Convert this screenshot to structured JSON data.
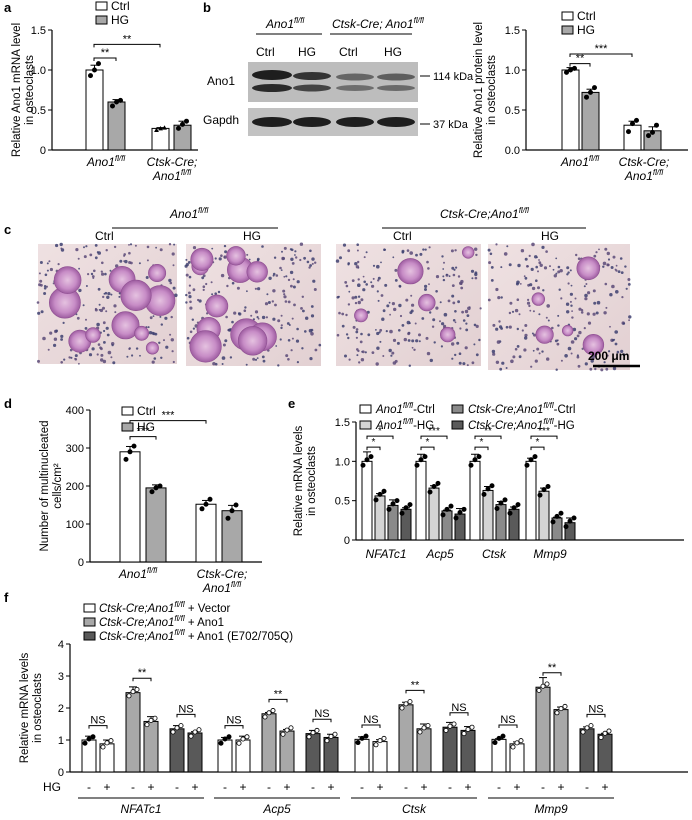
{
  "colors": {
    "ctrl": "#ffffff",
    "hg": "#a8a8a8",
    "vector": "#ffffff",
    "ano1": "#a8a8a8",
    "mut": "#595959",
    "e_white": "#ffffff",
    "e_light": "#d4d4d4",
    "e_mid": "#8a8a8a",
    "e_dark": "#5a5a5a"
  },
  "panel_letters": {
    "a": "a",
    "b": "b",
    "c": "c",
    "d": "d",
    "e": "e",
    "f": "f"
  },
  "chart_data": [
    {
      "id": "a",
      "type": "bar",
      "ylabel_line1": "Relative Ano1 mRNA level",
      "ylabel_line2": "in osteoclasts",
      "ylim": [
        0,
        1.5
      ],
      "yticks": [
        "0",
        "0.5",
        "1.0",
        "1.5"
      ],
      "groups": [
        {
          "label": "Ano1",
          "sup": "fl/fl",
          "line2": ""
        },
        {
          "label": "Ctsk-Cre;",
          "sup": "",
          "line2": "Ano1",
          "sup2": "fl/fl"
        }
      ],
      "legend": [
        "Ctrl",
        "HG"
      ],
      "series": [
        {
          "name": "Ctrl",
          "values": [
            1.0,
            0.27
          ]
        },
        {
          "name": "HG",
          "values": [
            0.6,
            0.31
          ]
        }
      ],
      "errors": [
        [
          0.06,
          0.01
        ],
        [
          0.03,
          0.05
        ]
      ],
      "points": [
        [
          [
            0.93,
            1.0,
            1.08
          ],
          [
            0.25,
            0.27,
            0.28
          ]
        ],
        [
          [
            0.55,
            0.6,
            0.62
          ],
          [
            0.27,
            0.32,
            0.36
          ]
        ]
      ],
      "sig": [
        "**",
        "**"
      ]
    },
    {
      "id": "b",
      "type": "bar",
      "ylabel_line1": "Relative Ano1 protein level",
      "ylabel_line2": "in osteoclasts",
      "ylim": [
        0,
        1.5
      ],
      "yticks": [
        "0.0",
        "0.5",
        "1.0",
        "1.5"
      ],
      "groups": [
        {
          "label": "Ano1",
          "sup": "fl/fl",
          "line2": ""
        },
        {
          "label": "Ctsk-Cre;",
          "sup": "",
          "line2": "Ano1",
          "sup2": "fl/fl"
        }
      ],
      "legend": [
        "Ctrl",
        "HG"
      ],
      "series": [
        {
          "name": "Ctrl",
          "values": [
            1.0,
            0.31
          ]
        },
        {
          "name": "HG",
          "values": [
            0.72,
            0.24
          ]
        }
      ],
      "errors": [
        [
          0.03,
          0.05
        ],
        [
          0.04,
          0.05
        ]
      ],
      "points": [
        [
          [
            0.97,
            1.0,
            1.02
          ],
          [
            0.23,
            0.33,
            0.37
          ]
        ],
        [
          [
            0.66,
            0.72,
            0.78
          ],
          [
            0.18,
            0.22,
            0.31
          ]
        ]
      ],
      "sig": [
        "**",
        "***"
      ]
    },
    {
      "id": "d",
      "type": "bar",
      "ylabel_line1": "Number of multinucleated",
      "ylabel_line2": "cells/cm²",
      "ylim": [
        0,
        400
      ],
      "yticks": [
        "0",
        "100",
        "200",
        "300",
        "400"
      ],
      "groups": [
        {
          "label": "Ano1",
          "sup": "fl/fl",
          "line2": ""
        },
        {
          "label": "Ctsk-Cre;",
          "sup": "",
          "line2": "Ano1",
          "sup2": "fl/fl"
        }
      ],
      "legend": [
        "Ctrl",
        "HG"
      ],
      "series": [
        {
          "name": "Ctrl",
          "values": [
            290,
            152
          ]
        },
        {
          "name": "HG",
          "values": [
            195,
            135
          ]
        }
      ],
      "errors": [
        [
          14,
          10
        ],
        [
          8,
          14
        ]
      ],
      "points": [
        [
          [
            270,
            290,
            305
          ],
          [
            140,
            152,
            165
          ]
        ],
        [
          [
            185,
            195,
            200
          ],
          [
            115,
            135,
            150
          ]
        ]
      ],
      "sig": [
        "***",
        "***"
      ]
    },
    {
      "id": "e",
      "type": "bar",
      "ylabel_line1": "Relative mRNA levels",
      "ylabel_line2": "in osteoclasts",
      "ylim": [
        0,
        1.5
      ],
      "yticks": [
        "0",
        "0.5",
        "1.0",
        "1.5"
      ],
      "categories": [
        "NFATc1",
        "Acp5",
        "Ctsk",
        "Mmp9"
      ],
      "legend": [
        {
          "pre": "Ano1",
          "sup": "fl/fl",
          "post": "-Ctrl"
        },
        {
          "pre": "Ctsk-Cre;Ano1",
          "sup": "fl/fl",
          "post": "-Ctrl"
        },
        {
          "pre": "Ano1",
          "sup": "fl/fl",
          "post": "-HG"
        },
        {
          "pre": "Ctsk-Cre;Ano1",
          "sup": "fl/fl",
          "post": "-HG"
        }
      ],
      "series": [
        {
          "name": "Ano1 fl/fl-Ctrl",
          "values": [
            1.0,
            1.0,
            1.0,
            1.0
          ]
        },
        {
          "name": "Ano1 fl/fl-HG",
          "values": [
            0.56,
            0.66,
            0.63,
            0.62
          ]
        },
        {
          "name": "Ctsk-Cre;Ano1 fl/fl-Ctrl",
          "values": [
            0.44,
            0.37,
            0.45,
            0.28
          ]
        },
        {
          "name": "Ctsk-Cre;Ano1 fl/fl-HG",
          "values": [
            0.39,
            0.33,
            0.39,
            0.22
          ]
        }
      ],
      "errors": [
        [
          0.12,
          0.09,
          0.09,
          0.04
        ],
        [
          0.03,
          0.03,
          0.05,
          0.04
        ],
        [
          0.07,
          0.01,
          0.04,
          0.01
        ],
        [
          0.02,
          0.07,
          0.03,
          0.06
        ]
      ],
      "sig": [
        [
          "*",
          "*"
        ],
        [
          "*",
          "***"
        ],
        [
          "*",
          "**"
        ],
        [
          "*",
          "***"
        ]
      ]
    },
    {
      "id": "f",
      "type": "bar",
      "ylabel_line1": "Relative mRNA levels",
      "ylabel_line2": "in osteoclasts",
      "ylim": [
        0,
        4
      ],
      "yticks": [
        "0",
        "1",
        "2",
        "3",
        "4"
      ],
      "categories": [
        "NFATc1",
        "Acp5",
        "Ctsk",
        "Mmp9"
      ],
      "legend": [
        {
          "pre": "Ctsk-Cre;Ano1",
          "sup": "fl/fl",
          "post": " + Vector"
        },
        {
          "pre": "Ctsk-Cre;Ano1",
          "sup": "fl/fl",
          "post": " + Ano1"
        },
        {
          "pre": "Ctsk-Cre;Ano1",
          "sup": "fl/fl",
          "post": " + Ano1 (E702/705Q)"
        }
      ],
      "hg_label": "HG",
      "hg_marks": [
        "-",
        "+",
        "-",
        "+",
        "-",
        "+"
      ],
      "series": [
        {
          "name": "Vector",
          "values": [
            [
              1.0,
              0.88
            ],
            [
              1.0,
              1.0
            ],
            [
              1.02,
              0.95
            ],
            [
              1.02,
              0.88
            ]
          ]
        },
        {
          "name": "Ano1",
          "values": [
            [
              2.48,
              1.58
            ],
            [
              1.82,
              1.28
            ],
            [
              2.1,
              1.35
            ],
            [
              2.65,
              1.95
            ]
          ]
        },
        {
          "name": "Ano1 (E702/705Q)",
          "values": [
            [
              1.35,
              1.22
            ],
            [
              1.2,
              1.08
            ],
            [
              1.4,
              1.3
            ],
            [
              1.35,
              1.18
            ]
          ]
        }
      ],
      "errors": [
        [
          [
            0.12,
            0.12
          ],
          [
            0.08,
            0.12
          ],
          [
            0.08,
            0.06
          ],
          [
            0.02,
            0.06
          ]
        ],
        [
          [
            0.18,
            0.15
          ],
          [
            0.04,
            0.05
          ],
          [
            0.08,
            0.15
          ],
          [
            0.3,
            0.08
          ]
        ],
        [
          [
            0.1,
            0.04
          ],
          [
            0.1,
            0.1
          ],
          [
            0.15,
            0.12
          ],
          [
            0.06,
            0.03
          ]
        ]
      ],
      "sig": [
        "NS",
        "**",
        "NS"
      ]
    }
  ],
  "blot": {
    "group1": {
      "label": "Ano1",
      "sup": "fl/fl"
    },
    "group2": {
      "label": "Ctsk-Cre; Ano1",
      "sup": "fl/fl"
    },
    "lanes": [
      "Ctrl",
      "HG",
      "Ctrl",
      "HG"
    ],
    "rows": [
      "Ano1",
      "Gapdh"
    ],
    "mw": [
      "114 kDa",
      "37 kDa"
    ]
  },
  "micrographs": {
    "group1": {
      "label": "Ano1",
      "sup": "fl/fl"
    },
    "group2": {
      "label": "Ctsk-Cre;Ano1",
      "sup": "fl/fl"
    },
    "labels": [
      "Ctrl",
      "HG",
      "Ctrl",
      "HG"
    ],
    "scalebar": "200 μm"
  }
}
